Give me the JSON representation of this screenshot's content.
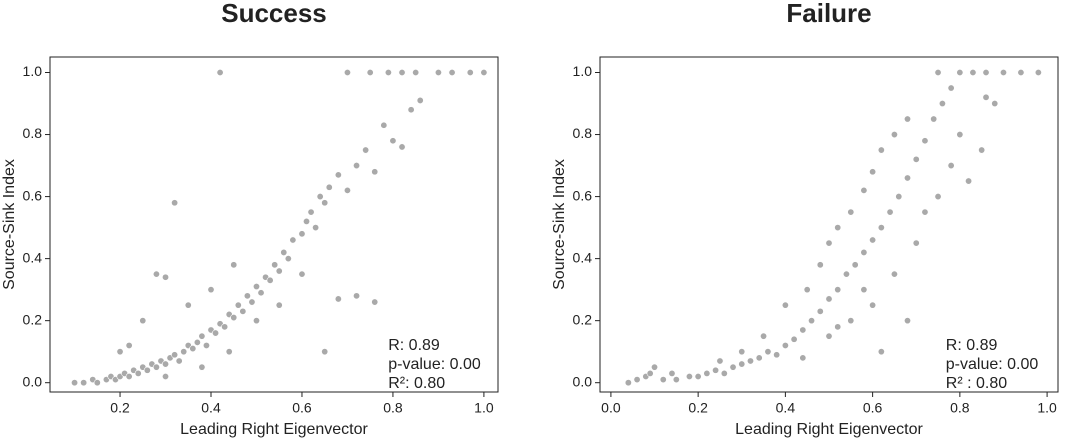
{
  "chart_data": [
    {
      "type": "scatter",
      "title": "Success",
      "xlabel": "Leading Right Eigenvector",
      "ylabel": "Source-Sink Index",
      "color": "#9a9a9a",
      "x": [
        0.1,
        0.12,
        0.14,
        0.15,
        0.17,
        0.18,
        0.19,
        0.2,
        0.21,
        0.22,
        0.23,
        0.24,
        0.25,
        0.26,
        0.27,
        0.28,
        0.29,
        0.3,
        0.31,
        0.32,
        0.33,
        0.34,
        0.35,
        0.36,
        0.37,
        0.38,
        0.39,
        0.4,
        0.41,
        0.42,
        0.43,
        0.44,
        0.45,
        0.46,
        0.47,
        0.48,
        0.49,
        0.5,
        0.51,
        0.52,
        0.53,
        0.54,
        0.55,
        0.56,
        0.57,
        0.58,
        0.6,
        0.61,
        0.62,
        0.63,
        0.64,
        0.65,
        0.66,
        0.68,
        0.7,
        0.72,
        0.74,
        0.76,
        0.78,
        0.8,
        0.82,
        0.84,
        0.86,
        0.7,
        0.75,
        0.79,
        0.82,
        0.85,
        0.9,
        0.93,
        0.97,
        1.0,
        0.42,
        0.32,
        0.28,
        0.3,
        0.25,
        0.22,
        0.2,
        0.35,
        0.4,
        0.45,
        0.55,
        0.6,
        0.65,
        0.68,
        0.72,
        0.76,
        0.5,
        0.38,
        0.3,
        0.44
      ],
      "values": [
        0.0,
        0.0,
        0.01,
        0.0,
        0.01,
        0.02,
        0.01,
        0.02,
        0.03,
        0.02,
        0.04,
        0.03,
        0.05,
        0.04,
        0.06,
        0.05,
        0.07,
        0.06,
        0.08,
        0.09,
        0.07,
        0.1,
        0.12,
        0.11,
        0.13,
        0.15,
        0.12,
        0.17,
        0.16,
        0.19,
        0.18,
        0.22,
        0.21,
        0.25,
        0.23,
        0.28,
        0.26,
        0.31,
        0.29,
        0.34,
        0.33,
        0.38,
        0.36,
        0.42,
        0.4,
        0.46,
        0.48,
        0.52,
        0.55,
        0.5,
        0.6,
        0.58,
        0.63,
        0.67,
        0.62,
        0.7,
        0.75,
        0.68,
        0.83,
        0.78,
        0.76,
        0.88,
        0.91,
        1.0,
        1.0,
        1.0,
        1.0,
        1.0,
        1.0,
        1.0,
        1.0,
        1.0,
        1.0,
        0.58,
        0.35,
        0.34,
        0.2,
        0.12,
        0.1,
        0.25,
        0.3,
        0.38,
        0.25,
        0.35,
        0.1,
        0.27,
        0.28,
        0.26,
        0.2,
        0.05,
        0.02,
        0.1
      ],
      "xlim": [
        0.046,
        1.031
      ],
      "ylim": [
        -0.03,
        1.05
      ],
      "xticks": [
        0.2,
        0.4,
        0.6,
        0.8,
        {
          "value": 1,
          "label": "1.0"
        }
      ],
      "yticks": [
        {
          "value": 0,
          "label": "0.0"
        },
        0.2,
        0.4,
        0.6,
        0.8,
        {
          "value": 1,
          "label": "1.0"
        }
      ],
      "annotations": [
        "R: 0.89",
        "p-value: 0.00",
        "R²: 0.80"
      ]
    },
    {
      "type": "scatter",
      "title": "Failure",
      "xlabel": "Leading Right Eigenvector",
      "ylabel": "Source-Sink Index",
      "color": "#9a9a9a",
      "x": [
        0.04,
        0.06,
        0.08,
        0.1,
        0.09,
        0.12,
        0.15,
        0.18,
        0.2,
        0.22,
        0.24,
        0.26,
        0.28,
        0.3,
        0.32,
        0.34,
        0.36,
        0.38,
        0.4,
        0.42,
        0.44,
        0.46,
        0.48,
        0.5,
        0.52,
        0.54,
        0.56,
        0.58,
        0.6,
        0.62,
        0.64,
        0.66,
        0.68,
        0.7,
        0.72,
        0.74,
        0.76,
        0.78,
        0.75,
        0.8,
        0.83,
        0.86,
        0.9,
        0.94,
        0.98,
        0.45,
        0.48,
        0.5,
        0.52,
        0.55,
        0.58,
        0.6,
        0.62,
        0.65,
        0.68,
        0.4,
        0.35,
        0.5,
        0.55,
        0.6,
        0.65,
        0.7,
        0.72,
        0.75,
        0.78,
        0.8,
        0.82,
        0.85,
        0.88,
        0.86,
        0.62,
        0.68,
        0.3,
        0.25,
        0.14,
        0.44,
        0.52,
        0.58
      ],
      "values": [
        0.0,
        0.01,
        0.02,
        0.05,
        0.03,
        0.01,
        0.01,
        0.02,
        0.02,
        0.03,
        0.04,
        0.03,
        0.05,
        0.06,
        0.07,
        0.08,
        0.1,
        0.09,
        0.12,
        0.14,
        0.17,
        0.2,
        0.23,
        0.27,
        0.3,
        0.35,
        0.38,
        0.42,
        0.46,
        0.5,
        0.55,
        0.6,
        0.66,
        0.72,
        0.78,
        0.85,
        0.9,
        0.95,
        1.0,
        1.0,
        1.0,
        1.0,
        1.0,
        1.0,
        1.0,
        0.3,
        0.38,
        0.45,
        0.5,
        0.55,
        0.62,
        0.68,
        0.75,
        0.8,
        0.85,
        0.25,
        0.15,
        0.15,
        0.2,
        0.25,
        0.35,
        0.45,
        0.55,
        0.6,
        0.7,
        0.8,
        0.65,
        0.75,
        0.9,
        0.92,
        0.1,
        0.2,
        0.1,
        0.07,
        0.03,
        0.08,
        0.18,
        0.3
      ],
      "xlim": [
        -0.025,
        1.025
      ],
      "ylim": [
        -0.03,
        1.05
      ],
      "xticks": [
        {
          "value": 0,
          "label": "0.0"
        },
        0.2,
        0.4,
        0.6,
        0.8,
        {
          "value": 1,
          "label": "1.0"
        }
      ],
      "yticks": [
        {
          "value": 0,
          "label": "0.0"
        },
        0.2,
        0.4,
        0.6,
        0.8,
        {
          "value": 1,
          "label": "1.0"
        }
      ],
      "annotations": [
        "R: 0.89",
        "p-value: 0.00",
        "R² : 0.80"
      ]
    }
  ]
}
